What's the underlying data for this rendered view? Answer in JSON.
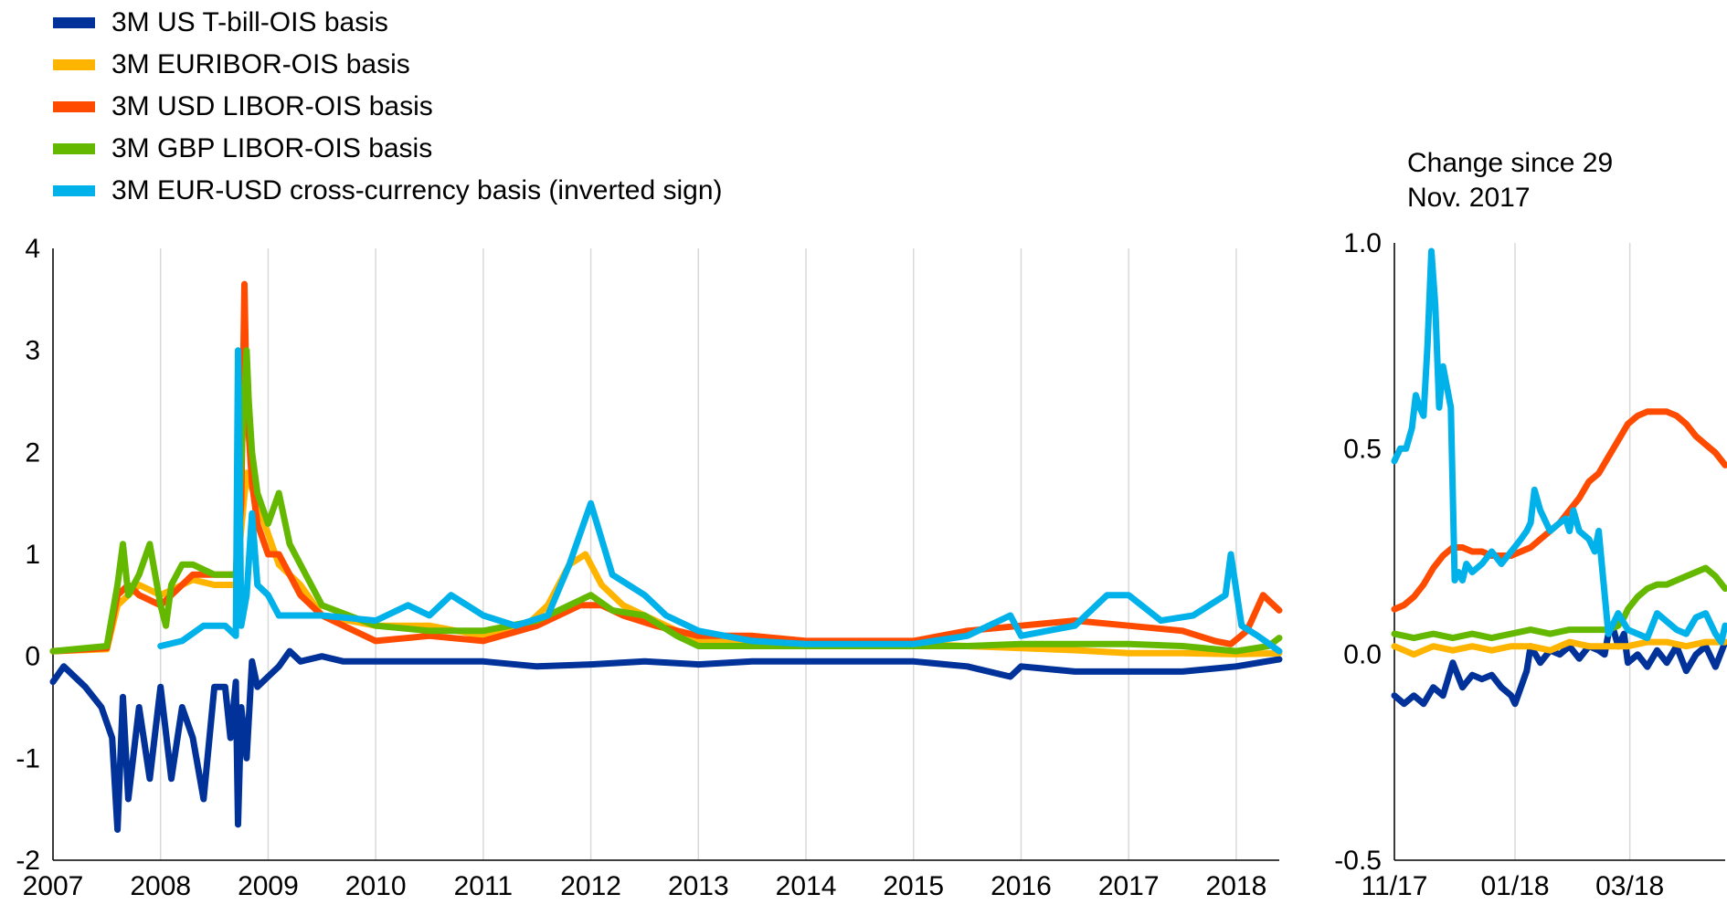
{
  "legend": [
    {
      "label": "3M US T-bill-OIS basis",
      "color": "#003299"
    },
    {
      "label": "3M EURIBOR-OIS basis",
      "color": "#FFB400"
    },
    {
      "label": "3M USD LIBOR-OIS basis",
      "color": "#FF4B00"
    },
    {
      "label": "3M GBP LIBOR-OIS basis",
      "color": "#65B800"
    },
    {
      "label": "3M EUR-USD cross-currency basis (inverted sign)",
      "color": "#00B1EA"
    }
  ],
  "note": [
    "Change since 29",
    "Nov. 2017"
  ],
  "chart_data": [
    {
      "type": "line",
      "xlim": [
        2007,
        2018.4
      ],
      "ylim": [
        -2,
        4
      ],
      "x_ticks": [
        "2007",
        "2008",
        "2009",
        "2010",
        "2011",
        "2012",
        "2013",
        "2014",
        "2015",
        "2016",
        "2017",
        "2018"
      ],
      "y_ticks": [
        "4",
        "3",
        "2",
        "1",
        "0",
        "-1",
        "-2"
      ],
      "grid": "vertical",
      "series": [
        {
          "name": "3M US T-bill-OIS basis",
          "color": "#003299",
          "x": [
            2007,
            2007.1,
            2007.3,
            2007.45,
            2007.55,
            2007.6,
            2007.65,
            2007.7,
            2007.8,
            2007.9,
            2008,
            2008.1,
            2008.2,
            2008.3,
            2008.4,
            2008.5,
            2008.6,
            2008.65,
            2008.7,
            2008.72,
            2008.75,
            2008.8,
            2008.85,
            2008.9,
            2009,
            2009.1,
            2009.2,
            2009.3,
            2009.5,
            2009.7,
            2010,
            2010.5,
            2011,
            2011.5,
            2012,
            2012.5,
            2013,
            2013.5,
            2014,
            2014.5,
            2015,
            2015.5,
            2015.9,
            2016,
            2016.5,
            2017,
            2017.5,
            2018,
            2018.4
          ],
          "y": [
            -0.25,
            -0.1,
            -0.3,
            -0.5,
            -0.8,
            -1.7,
            -0.4,
            -1.4,
            -0.5,
            -1.2,
            -0.3,
            -1.2,
            -0.5,
            -0.8,
            -1.4,
            -0.3,
            -0.3,
            -0.8,
            -0.25,
            -1.65,
            -0.5,
            -1.0,
            -0.05,
            -0.3,
            -0.2,
            -0.1,
            0.05,
            -0.05,
            0,
            -0.05,
            -0.05,
            -0.05,
            -0.05,
            -0.1,
            -0.08,
            -0.05,
            -0.08,
            -0.05,
            -0.05,
            -0.05,
            -0.05,
            -0.1,
            -0.2,
            -0.1,
            -0.15,
            -0.15,
            -0.15,
            -0.1,
            -0.03
          ]
        },
        {
          "name": "3M EURIBOR-OIS basis",
          "color": "#FFB400",
          "x": [
            2007,
            2007.5,
            2007.6,
            2007.7,
            2007.8,
            2008,
            2008.2,
            2008.3,
            2008.5,
            2008.7,
            2008.8,
            2008.9,
            2009,
            2009.1,
            2009.3,
            2009.5,
            2010,
            2010.5,
            2011,
            2011.4,
            2011.6,
            2011.8,
            2011.95,
            2012.1,
            2012.3,
            2012.5,
            2012.7,
            2013,
            2013.5,
            2014,
            2014.5,
            2015,
            2015.5,
            2016,
            2016.5,
            2017,
            2017.5,
            2018,
            2018.4
          ],
          "y": [
            0.05,
            0.07,
            0.5,
            0.6,
            0.7,
            0.6,
            0.7,
            0.75,
            0.7,
            0.7,
            1.8,
            1.5,
            1.2,
            0.9,
            0.7,
            0.4,
            0.3,
            0.3,
            0.2,
            0.3,
            0.5,
            0.9,
            1.0,
            0.7,
            0.5,
            0.4,
            0.3,
            0.15,
            0.12,
            0.12,
            0.15,
            0.12,
            0.1,
            0.08,
            0.06,
            0.03,
            0.03,
            0.02,
            0.03
          ]
        },
        {
          "name": "3M USD LIBOR-OIS basis",
          "color": "#FF4B00",
          "x": [
            2007,
            2007.5,
            2007.6,
            2007.7,
            2007.8,
            2008,
            2008.2,
            2008.3,
            2008.5,
            2008.7,
            2008.75,
            2008.78,
            2008.8,
            2008.85,
            2008.9,
            2009,
            2009.1,
            2009.2,
            2009.3,
            2009.5,
            2010,
            2010.5,
            2011,
            2011.5,
            2011.9,
            2012.1,
            2012.3,
            2012.6,
            2013,
            2013.5,
            2014,
            2014.5,
            2015,
            2015.5,
            2016,
            2016.5,
            2017,
            2017.5,
            2017.8,
            2017.95,
            2018.1,
            2018.25,
            2018.4
          ],
          "y": [
            0.05,
            0.08,
            0.6,
            0.7,
            0.6,
            0.5,
            0.7,
            0.8,
            0.8,
            0.8,
            1.5,
            3.65,
            2.5,
            1.7,
            1.3,
            1.0,
            1.0,
            0.8,
            0.6,
            0.4,
            0.15,
            0.2,
            0.15,
            0.3,
            0.5,
            0.5,
            0.4,
            0.3,
            0.2,
            0.2,
            0.15,
            0.15,
            0.15,
            0.25,
            0.3,
            0.35,
            0.3,
            0.25,
            0.15,
            0.12,
            0.25,
            0.6,
            0.45
          ]
        },
        {
          "name": "3M GBP LIBOR-OIS basis",
          "color": "#65B800",
          "x": [
            2007,
            2007.5,
            2007.6,
            2007.65,
            2007.7,
            2007.8,
            2007.9,
            2008,
            2008.05,
            2008.1,
            2008.2,
            2008.3,
            2008.5,
            2008.7,
            2008.8,
            2008.82,
            2008.85,
            2008.9,
            2009,
            2009.1,
            2009.2,
            2009.3,
            2009.5,
            2010,
            2010.5,
            2011,
            2011.5,
            2011.8,
            2012,
            2012.2,
            2012.5,
            2012.8,
            2013,
            2013.5,
            2014,
            2014.5,
            2015,
            2015.5,
            2016,
            2016.5,
            2017,
            2017.5,
            2018,
            2018.3,
            2018.4
          ],
          "y": [
            0.05,
            0.1,
            0.7,
            1.1,
            0.6,
            0.8,
            1.1,
            0.5,
            0.3,
            0.7,
            0.9,
            0.9,
            0.8,
            0.8,
            3.0,
            2.5,
            2.0,
            1.6,
            1.3,
            1.6,
            1.1,
            0.9,
            0.5,
            0.3,
            0.25,
            0.25,
            0.35,
            0.5,
            0.6,
            0.45,
            0.4,
            0.2,
            0.1,
            0.1,
            0.1,
            0.1,
            0.1,
            0.1,
            0.12,
            0.12,
            0.12,
            0.1,
            0.05,
            0.1,
            0.18
          ]
        },
        {
          "name": "3M EUR-USD cross-currency basis (inverted sign)",
          "color": "#00B1EA",
          "x": [
            2008,
            2008.2,
            2008.4,
            2008.6,
            2008.7,
            2008.72,
            2008.75,
            2008.8,
            2008.85,
            2008.9,
            2009,
            2009.1,
            2009.3,
            2009.5,
            2010,
            2010.3,
            2010.5,
            2010.7,
            2011,
            2011.3,
            2011.6,
            2011.8,
            2011.9,
            2012,
            2012.2,
            2012.5,
            2012.7,
            2013,
            2013.5,
            2014,
            2014.5,
            2015,
            2015.5,
            2015.9,
            2016,
            2016.5,
            2016.8,
            2017,
            2017.3,
            2017.6,
            2017.9,
            2017.95,
            2018.05,
            2018.2,
            2018.4
          ],
          "y": [
            0.1,
            0.15,
            0.3,
            0.3,
            0.2,
            3.0,
            0.3,
            0.6,
            1.4,
            0.7,
            0.6,
            0.4,
            0.4,
            0.4,
            0.35,
            0.5,
            0.4,
            0.6,
            0.4,
            0.3,
            0.4,
            0.9,
            1.2,
            1.5,
            0.8,
            0.6,
            0.4,
            0.25,
            0.15,
            0.12,
            0.12,
            0.12,
            0.2,
            0.4,
            0.2,
            0.3,
            0.6,
            0.6,
            0.35,
            0.4,
            0.6,
            1.0,
            0.3,
            0.2,
            0.05
          ]
        }
      ]
    },
    {
      "type": "line",
      "xlim": [
        0,
        170
      ],
      "ylim": [
        -0.5,
        1.0
      ],
      "x_ticks": [
        {
          "x": 0,
          "label": "11/17"
        },
        {
          "x": 62,
          "label": "01/18"
        },
        {
          "x": 121,
          "label": "03/18"
        }
      ],
      "y_ticks": [
        "1.0",
        "0.5",
        "0.0",
        "-0.5"
      ],
      "grid": "vertical",
      "series": [
        {
          "name": "3M US T-bill-OIS basis",
          "color": "#003299",
          "x": [
            0,
            5,
            10,
            15,
            20,
            25,
            30,
            35,
            40,
            45,
            50,
            55,
            60,
            62,
            65,
            68,
            70,
            75,
            80,
            85,
            90,
            95,
            100,
            105,
            108,
            110,
            112,
            115,
            118,
            120,
            125,
            130,
            135,
            140,
            145,
            150,
            155,
            160,
            165,
            170
          ],
          "y": [
            -0.1,
            -0.12,
            -0.1,
            -0.12,
            -0.08,
            -0.1,
            -0.02,
            -0.08,
            -0.05,
            -0.06,
            -0.05,
            -0.08,
            -0.1,
            -0.12,
            -0.08,
            -0.04,
            0.02,
            -0.02,
            0.01,
            0.0,
            0.02,
            -0.01,
            0.02,
            0.01,
            0.0,
            0.05,
            0.07,
            0.02,
            0.05,
            -0.02,
            0.0,
            -0.03,
            0.01,
            -0.02,
            0.02,
            -0.04,
            0.0,
            0.02,
            -0.03,
            0.03
          ]
        },
        {
          "name": "3M EURIBOR-OIS basis",
          "color": "#FFB400",
          "x": [
            0,
            10,
            20,
            30,
            40,
            50,
            60,
            70,
            80,
            90,
            100,
            110,
            120,
            130,
            140,
            150,
            160,
            170
          ],
          "y": [
            0.02,
            0.0,
            0.02,
            0.01,
            0.02,
            0.01,
            0.02,
            0.02,
            0.01,
            0.03,
            0.02,
            0.02,
            0.02,
            0.03,
            0.03,
            0.02,
            0.03,
            0.03
          ]
        },
        {
          "name": "3M USD LIBOR-OIS basis",
          "color": "#FF4B00",
          "x": [
            0,
            5,
            10,
            15,
            20,
            25,
            30,
            35,
            40,
            45,
            50,
            55,
            60,
            65,
            70,
            75,
            80,
            85,
            90,
            95,
            100,
            105,
            110,
            115,
            120,
            125,
            130,
            135,
            140,
            145,
            150,
            155,
            160,
            165,
            170
          ],
          "y": [
            0.11,
            0.12,
            0.14,
            0.17,
            0.21,
            0.24,
            0.26,
            0.26,
            0.25,
            0.25,
            0.24,
            0.24,
            0.24,
            0.25,
            0.26,
            0.28,
            0.3,
            0.32,
            0.35,
            0.38,
            0.42,
            0.44,
            0.48,
            0.52,
            0.56,
            0.58,
            0.59,
            0.59,
            0.59,
            0.58,
            0.56,
            0.53,
            0.51,
            0.49,
            0.46
          ]
        },
        {
          "name": "3M GBP LIBOR-OIS basis",
          "color": "#65B800",
          "x": [
            0,
            10,
            20,
            30,
            40,
            50,
            60,
            70,
            80,
            90,
            100,
            110,
            115,
            118,
            120,
            125,
            130,
            135,
            140,
            145,
            150,
            155,
            160,
            165,
            170
          ],
          "y": [
            0.05,
            0.04,
            0.05,
            0.04,
            0.05,
            0.04,
            0.05,
            0.06,
            0.05,
            0.06,
            0.06,
            0.06,
            0.07,
            0.09,
            0.11,
            0.14,
            0.16,
            0.17,
            0.17,
            0.18,
            0.19,
            0.2,
            0.21,
            0.19,
            0.16
          ]
        },
        {
          "name": "3M EUR-USD cross-currency basis (inverted sign)",
          "color": "#00B1EA",
          "x": [
            0,
            3,
            6,
            9,
            11,
            13,
            15,
            17,
            19,
            21,
            23,
            25,
            27,
            29,
            31,
            33,
            35,
            37,
            40,
            45,
            50,
            55,
            60,
            65,
            68,
            70,
            72,
            75,
            80,
            85,
            88,
            90,
            92,
            95,
            100,
            103,
            105,
            107,
            110,
            115,
            120,
            125,
            130,
            135,
            140,
            145,
            150,
            155,
            160,
            165,
            168,
            170
          ],
          "y": [
            0.47,
            0.5,
            0.5,
            0.55,
            0.63,
            0.6,
            0.58,
            0.75,
            0.98,
            0.85,
            0.6,
            0.7,
            0.65,
            0.6,
            0.18,
            0.2,
            0.18,
            0.22,
            0.2,
            0.22,
            0.25,
            0.22,
            0.25,
            0.28,
            0.3,
            0.32,
            0.4,
            0.35,
            0.3,
            0.32,
            0.33,
            0.3,
            0.35,
            0.3,
            0.28,
            0.25,
            0.3,
            0.2,
            0.05,
            0.1,
            0.06,
            0.05,
            0.04,
            0.1,
            0.08,
            0.06,
            0.05,
            0.09,
            0.1,
            0.05,
            0.03,
            0.07
          ]
        }
      ]
    }
  ]
}
